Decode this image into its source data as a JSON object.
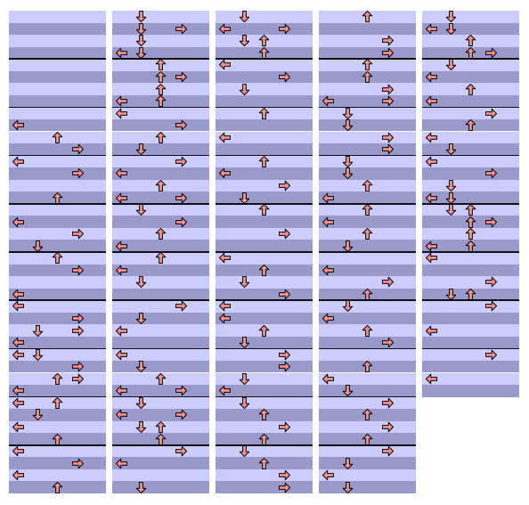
{
  "chart_data": {
    "type": "step-chart",
    "lanes": [
      "left",
      "down",
      "up",
      "right"
    ],
    "rows_per_measure": 4,
    "colors": {
      "stripe_light": "#ccccff",
      "stripe_dark": "#9999cc",
      "measure_line": "#111111",
      "arrow_fill": "#ff9090",
      "arrow_stroke": "#000000"
    },
    "columns": [
      {
        "measures": 10,
        "notes": [
          [
            9,
            "left"
          ],
          [
            10,
            "up"
          ],
          [
            11,
            "right"
          ],
          [
            12,
            "left"
          ],
          [
            13,
            "right"
          ],
          [
            15,
            "up"
          ],
          [
            17,
            "left"
          ],
          [
            18,
            "right"
          ],
          [
            19,
            "down"
          ],
          [
            20,
            "up"
          ],
          [
            21,
            "right"
          ],
          [
            23,
            "left"
          ],
          [
            24,
            "left"
          ],
          [
            25,
            "right"
          ],
          [
            26,
            "down"
          ],
          [
            26,
            "right"
          ],
          [
            27,
            "left"
          ],
          [
            28,
            "left"
          ],
          [
            28,
            "down"
          ],
          [
            29,
            "right"
          ],
          [
            30,
            "up"
          ],
          [
            30,
            "right"
          ],
          [
            31,
            "left"
          ],
          [
            32,
            "left"
          ],
          [
            32,
            "up"
          ],
          [
            33,
            "down"
          ],
          [
            34,
            "left"
          ],
          [
            35,
            "up"
          ],
          [
            36,
            "left"
          ],
          [
            37,
            "right"
          ],
          [
            38,
            "left"
          ],
          [
            39,
            "up"
          ],
          [
            40,
            "left"
          ],
          [
            40,
            "right"
          ]
        ]
      },
      {
        "measures": 10,
        "notes": [
          [
            0,
            "down"
          ],
          [
            1,
            "down"
          ],
          [
            1,
            "right"
          ],
          [
            2,
            "down"
          ],
          [
            3,
            "down"
          ],
          [
            3,
            "left"
          ],
          [
            4,
            "up"
          ],
          [
            5,
            "up"
          ],
          [
            5,
            "right"
          ],
          [
            6,
            "up"
          ],
          [
            7,
            "up"
          ],
          [
            7,
            "left"
          ],
          [
            8,
            "left"
          ],
          [
            9,
            "right"
          ],
          [
            10,
            "up"
          ],
          [
            11,
            "down"
          ],
          [
            12,
            "right"
          ],
          [
            13,
            "left"
          ],
          [
            14,
            "up"
          ],
          [
            15,
            "left"
          ],
          [
            15,
            "right"
          ],
          [
            16,
            "down"
          ],
          [
            17,
            "right"
          ],
          [
            18,
            "up"
          ],
          [
            19,
            "left"
          ],
          [
            20,
            "up"
          ],
          [
            21,
            "left"
          ],
          [
            22,
            "down"
          ],
          [
            24,
            "right"
          ],
          [
            25,
            "down"
          ],
          [
            26,
            "left"
          ],
          [
            28,
            "left"
          ],
          [
            29,
            "down"
          ],
          [
            30,
            "up"
          ],
          [
            31,
            "left"
          ],
          [
            31,
            "right"
          ],
          [
            32,
            "down"
          ],
          [
            33,
            "left"
          ],
          [
            33,
            "right"
          ],
          [
            34,
            "down"
          ],
          [
            34,
            "up"
          ],
          [
            35,
            "up"
          ],
          [
            36,
            "right"
          ],
          [
            37,
            "left"
          ],
          [
            39,
            "down"
          ],
          [
            40,
            "right"
          ]
        ]
      },
      {
        "measures": 10,
        "notes": [
          [
            0,
            "down"
          ],
          [
            1,
            "left"
          ],
          [
            1,
            "right"
          ],
          [
            2,
            "down"
          ],
          [
            2,
            "up"
          ],
          [
            3,
            "up"
          ],
          [
            4,
            "left"
          ],
          [
            5,
            "right"
          ],
          [
            6,
            "down"
          ],
          [
            8,
            "up"
          ],
          [
            10,
            "left"
          ],
          [
            12,
            "up"
          ],
          [
            13,
            "left"
          ],
          [
            14,
            "right"
          ],
          [
            15,
            "down"
          ],
          [
            16,
            "up"
          ],
          [
            18,
            "right"
          ],
          [
            20,
            "left"
          ],
          [
            21,
            "up"
          ],
          [
            22,
            "down"
          ],
          [
            23,
            "right"
          ],
          [
            24,
            "left"
          ],
          [
            25,
            "left"
          ],
          [
            26,
            "up"
          ],
          [
            27,
            "down"
          ],
          [
            28,
            "right"
          ],
          [
            29,
            "right"
          ],
          [
            30,
            "down"
          ],
          [
            31,
            "left"
          ],
          [
            32,
            "down"
          ],
          [
            33,
            "up"
          ],
          [
            34,
            "right"
          ],
          [
            35,
            "up"
          ],
          [
            36,
            "down"
          ],
          [
            37,
            "up"
          ],
          [
            38,
            "right"
          ],
          [
            39,
            "right"
          ],
          [
            40,
            "left"
          ]
        ]
      },
      {
        "measures": 10,
        "notes": [
          [
            0,
            "up"
          ],
          [
            2,
            "right"
          ],
          [
            3,
            "right"
          ],
          [
            4,
            "up"
          ],
          [
            5,
            "up"
          ],
          [
            6,
            "right"
          ],
          [
            7,
            "left"
          ],
          [
            7,
            "right"
          ],
          [
            8,
            "down"
          ],
          [
            9,
            "down"
          ],
          [
            10,
            "right"
          ],
          [
            11,
            "right"
          ],
          [
            12,
            "down"
          ],
          [
            13,
            "down"
          ],
          [
            14,
            "up"
          ],
          [
            15,
            "left"
          ],
          [
            16,
            "up"
          ],
          [
            17,
            "left"
          ],
          [
            18,
            "up"
          ],
          [
            19,
            "down"
          ],
          [
            21,
            "left"
          ],
          [
            22,
            "right"
          ],
          [
            23,
            "up"
          ],
          [
            24,
            "down"
          ],
          [
            25,
            "left"
          ],
          [
            26,
            "up"
          ],
          [
            27,
            "right"
          ],
          [
            29,
            "up"
          ],
          [
            30,
            "left"
          ],
          [
            31,
            "down"
          ],
          [
            32,
            "right"
          ],
          [
            33,
            "up"
          ],
          [
            34,
            "right"
          ],
          [
            35,
            "up"
          ],
          [
            36,
            "right"
          ],
          [
            37,
            "down"
          ],
          [
            38,
            "left"
          ],
          [
            39,
            "down"
          ],
          [
            40,
            "left"
          ],
          [
            40,
            "right"
          ]
        ]
      },
      {
        "measures": 8,
        "notes": [
          [
            0,
            "down"
          ],
          [
            1,
            "left"
          ],
          [
            1,
            "down"
          ],
          [
            2,
            "up"
          ],
          [
            3,
            "up"
          ],
          [
            3,
            "right"
          ],
          [
            4,
            "down"
          ],
          [
            5,
            "left"
          ],
          [
            6,
            "up"
          ],
          [
            7,
            "left"
          ],
          [
            8,
            "right"
          ],
          [
            9,
            "up"
          ],
          [
            10,
            "left"
          ],
          [
            11,
            "down"
          ],
          [
            12,
            "left"
          ],
          [
            13,
            "right"
          ],
          [
            14,
            "down"
          ],
          [
            15,
            "left"
          ],
          [
            15,
            "down"
          ],
          [
            16,
            "down"
          ],
          [
            16,
            "up"
          ],
          [
            17,
            "up"
          ],
          [
            17,
            "right"
          ],
          [
            18,
            "up"
          ],
          [
            19,
            "left"
          ],
          [
            19,
            "up"
          ],
          [
            20,
            "left"
          ],
          [
            22,
            "right"
          ],
          [
            23,
            "down"
          ],
          [
            23,
            "up"
          ],
          [
            24,
            "right"
          ],
          [
            26,
            "left"
          ],
          [
            28,
            "right"
          ],
          [
            30,
            "left"
          ]
        ]
      }
    ]
  }
}
